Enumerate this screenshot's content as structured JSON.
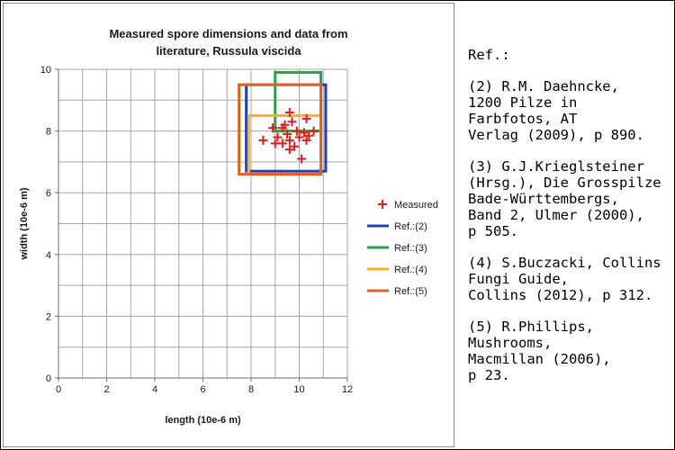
{
  "chart_data": {
    "type": "scatter",
    "title_lines": [
      "Measured spore dimensions and data from",
      "literature, Russula viscida"
    ],
    "xlabel": "length (10e-6 m)",
    "ylabel": "width (10e-6 m)",
    "xlim": [
      0,
      12
    ],
    "ylim": [
      0,
      10
    ],
    "xticks": [
      "0",
      "2",
      "4",
      "6",
      "8",
      "10",
      "12"
    ],
    "yticks": [
      "0",
      "2",
      "4",
      "6",
      "8",
      "10"
    ],
    "grid": true,
    "legend_position": "right",
    "measured": {
      "name": "Measured",
      "color": "#e31b1b",
      "points": [
        {
          "x": 9.6,
          "y": 8.6
        },
        {
          "x": 10.3,
          "y": 8.4
        },
        {
          "x": 9.7,
          "y": 8.3
        },
        {
          "x": 9.4,
          "y": 8.2
        },
        {
          "x": 8.9,
          "y": 8.1
        },
        {
          "x": 9.3,
          "y": 8.1
        },
        {
          "x": 9.9,
          "y": 8.0
        },
        {
          "x": 10.6,
          "y": 8.0
        },
        {
          "x": 10.2,
          "y": 7.95
        },
        {
          "x": 9.5,
          "y": 7.9
        },
        {
          "x": 10.4,
          "y": 7.85
        },
        {
          "x": 9.1,
          "y": 7.8
        },
        {
          "x": 10.0,
          "y": 7.8
        },
        {
          "x": 8.5,
          "y": 7.7
        },
        {
          "x": 9.6,
          "y": 7.7
        },
        {
          "x": 10.3,
          "y": 7.7
        },
        {
          "x": 9.0,
          "y": 7.6
        },
        {
          "x": 9.3,
          "y": 7.6
        },
        {
          "x": 9.8,
          "y": 7.5
        },
        {
          "x": 9.6,
          "y": 7.4
        },
        {
          "x": 10.1,
          "y": 7.1
        }
      ]
    },
    "references": [
      {
        "name": "Ref.:(2)",
        "color": "#1f3fbf",
        "length": [
          7.8,
          11.1
        ],
        "width": [
          6.7,
          9.5
        ]
      },
      {
        "name": "Ref.:(3)",
        "color": "#2ca048",
        "length": [
          9.0,
          10.9
        ],
        "width": [
          8.0,
          9.9
        ]
      },
      {
        "name": "Ref.:(4)",
        "color": "#ffb21a",
        "length": [
          7.9,
          10.9
        ],
        "width": [
          6.6,
          8.5
        ]
      },
      {
        "name": "Ref.:(5)",
        "color": "#e0621e",
        "length": [
          7.5,
          10.9
        ],
        "width": [
          6.6,
          9.5
        ]
      }
    ]
  },
  "refs": {
    "heading": "Ref.:",
    "entries": [
      "(2) R.M. Daehncke,\n1200 Pilze in\nFarbfotos, AT\nVerlag (2009), p 890.",
      "(3) G.J.Krieglsteiner\n(Hrsg.), Die Grosspilze\nBade-Württembergs,\nBand 2, Ulmer (2000),\np 505.",
      "(4) S.Buczacki, Collins\nFungi Guide,\nCollins (2012), p 312.",
      "(5) R.Phillips,\nMushrooms,\nMacmillan (2006),\np 23."
    ]
  }
}
